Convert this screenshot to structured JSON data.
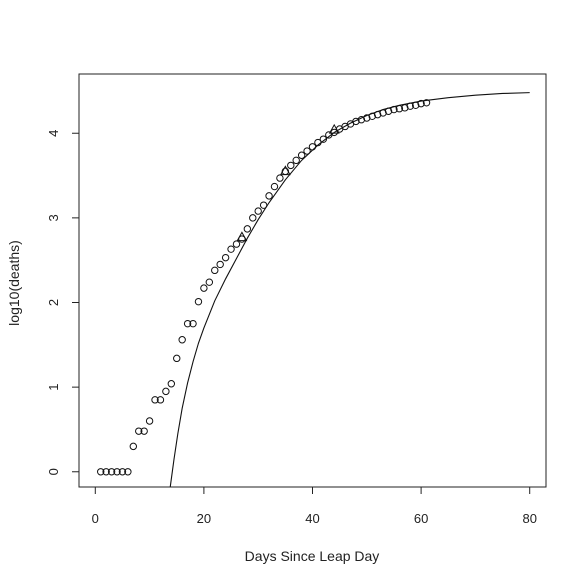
{
  "chart_data": {
    "type": "scatter",
    "title": "",
    "xlabel": "Days Since Leap Day",
    "ylabel": "log10(deaths)",
    "xlim": [
      -3,
      83
    ],
    "ylim": [
      -0.18,
      4.7
    ],
    "x_ticks": [
      0,
      20,
      40,
      60,
      80
    ],
    "y_ticks": [
      0,
      1,
      2,
      3,
      4
    ],
    "x_tick_labels": [
      "0",
      "20",
      "40",
      "60",
      "80"
    ],
    "y_tick_labels": [
      "0",
      "1",
      "2",
      "3",
      "4"
    ],
    "grid": false,
    "legend": "none",
    "series": [
      {
        "marker": "circle",
        "x": [
          1,
          2,
          3,
          4,
          5,
          6,
          7,
          8,
          9,
          10,
          11,
          12,
          13,
          14,
          15,
          16,
          17,
          18,
          19,
          20,
          21,
          22,
          23,
          24,
          25,
          26,
          27,
          28,
          29,
          30,
          31,
          32,
          33,
          34,
          35,
          36,
          37,
          38,
          39,
          40,
          41,
          42,
          43,
          44,
          45,
          46,
          47,
          48,
          49,
          50,
          51,
          52,
          53,
          54,
          55,
          56,
          57,
          58,
          59,
          60,
          61
        ],
        "y": [
          0,
          0,
          0,
          0,
          0,
          0,
          0.3,
          0.48,
          0.48,
          0.6,
          0.85,
          0.85,
          0.95,
          1.04,
          1.34,
          1.56,
          1.75,
          1.75,
          2.01,
          2.17,
          2.24,
          2.38,
          2.45,
          2.53,
          2.63,
          2.69,
          2.75,
          2.87,
          3.0,
          3.08,
          3.15,
          3.26,
          3.37,
          3.47,
          3.55,
          3.62,
          3.68,
          3.74,
          3.79,
          3.84,
          3.89,
          3.93,
          3.98,
          4.01,
          4.05,
          4.08,
          4.11,
          4.14,
          4.16,
          4.18,
          4.2,
          4.22,
          4.24,
          4.26,
          4.28,
          4.29,
          4.3,
          4.32,
          4.33,
          4.35,
          4.36
        ]
      },
      {
        "marker": "triangle",
        "x": [
          27,
          35,
          44
        ],
        "y": [
          2.77,
          3.55,
          4.04
        ]
      },
      {
        "marker": "line",
        "x": [
          13.8,
          14.5,
          15.2,
          16,
          17,
          18,
          19,
          20,
          22,
          24,
          26,
          28,
          30,
          32,
          35,
          38,
          41,
          44,
          47,
          50,
          53,
          56,
          60,
          65,
          70,
          75,
          80
        ],
        "y": [
          -0.18,
          0.15,
          0.45,
          0.75,
          1.05,
          1.3,
          1.52,
          1.7,
          2.02,
          2.28,
          2.52,
          2.76,
          2.98,
          3.18,
          3.45,
          3.68,
          3.86,
          4.01,
          4.12,
          4.21,
          4.28,
          4.33,
          4.38,
          4.42,
          4.45,
          4.47,
          4.48
        ]
      }
    ]
  }
}
